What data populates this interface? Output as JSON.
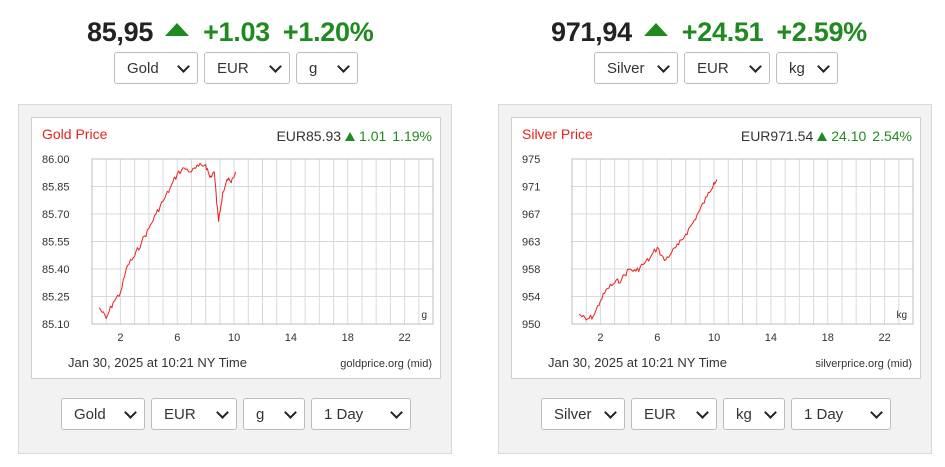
{
  "colors": {
    "up": "#1f8a1f",
    "line": "#e8211d",
    "grid": "#d9d9d9"
  },
  "gold": {
    "headline": {
      "price": "85,95",
      "change": "+1.03",
      "percent": "+1.20%"
    },
    "top_selects": {
      "metal": "Gold",
      "currency": "EUR",
      "unit": "g"
    },
    "chart": {
      "title": "Gold Price",
      "quote_price": "EUR85.93",
      "quote_change": "1.01",
      "quote_percent": "1.19%",
      "timestamp": "Jan 30, 2025 at 10:21 NY Time",
      "source": "goldprice.org (mid)"
    },
    "bottom_selects": {
      "metal": "Gold",
      "currency": "EUR",
      "unit": "g",
      "range": "1 Day"
    },
    "chart_data": {
      "type": "line",
      "x_ticks": [
        "2",
        "6",
        "10",
        "14",
        "18",
        "22"
      ],
      "y_ticks": [
        "86.00",
        "85.85",
        "85.70",
        "85.55",
        "85.40",
        "85.25",
        "85.10"
      ],
      "ylim": [
        85.1,
        86.0
      ],
      "xlim": [
        0,
        24
      ],
      "unit_label": "g",
      "x": [
        0.5,
        1.0,
        1.5,
        2.0,
        2.5,
        3.0,
        3.5,
        4.0,
        4.5,
        5.0,
        5.5,
        6.0,
        6.5,
        7.0,
        7.5,
        8.0,
        8.3,
        8.6,
        8.9,
        9.2,
        9.5,
        9.8,
        10.1
      ],
      "y": [
        85.19,
        85.13,
        85.22,
        85.27,
        85.42,
        85.47,
        85.55,
        85.62,
        85.7,
        85.77,
        85.84,
        85.92,
        85.95,
        85.93,
        85.96,
        85.97,
        85.9,
        85.93,
        85.66,
        85.82,
        85.89,
        85.87,
        85.93
      ]
    }
  },
  "silver": {
    "headline": {
      "price": "971,94",
      "change": "+24.51",
      "percent": "+2.59%"
    },
    "top_selects": {
      "metal": "Silver",
      "currency": "EUR",
      "unit": "kg"
    },
    "chart": {
      "title": "Silver Price",
      "quote_price": "EUR971.54",
      "quote_change": "24.10",
      "quote_percent": "2.54%",
      "timestamp": "Jan 30, 2025 at 10:21 NY Time",
      "source": "silverprice.org (mid)"
    },
    "bottom_selects": {
      "metal": "Silver",
      "currency": "EUR",
      "unit": "kg",
      "range": "1 Day"
    },
    "chart_data": {
      "type": "line",
      "x_ticks": [
        "2",
        "6",
        "10",
        "14",
        "18",
        "22"
      ],
      "y_ticks": [
        "975",
        "971",
        "967",
        "963",
        "958",
        "954",
        "950"
      ],
      "ylim": [
        950,
        975
      ],
      "xlim": [
        0,
        24
      ],
      "unit_label": "kg",
      "x": [
        0.5,
        1.0,
        1.5,
        2.0,
        2.5,
        3.0,
        3.5,
        4.0,
        4.5,
        5.0,
        5.5,
        6.0,
        6.5,
        7.0,
        7.5,
        8.0,
        8.5,
        9.0,
        9.5,
        10.0,
        10.2
      ],
      "y": [
        951.5,
        950.6,
        951.2,
        953.5,
        955.4,
        956.2,
        956.8,
        958.3,
        958.0,
        959.0,
        960.0,
        961.6,
        959.6,
        960.8,
        962.0,
        963.6,
        965.3,
        967.3,
        969.3,
        971.5,
        971.9
      ]
    }
  }
}
